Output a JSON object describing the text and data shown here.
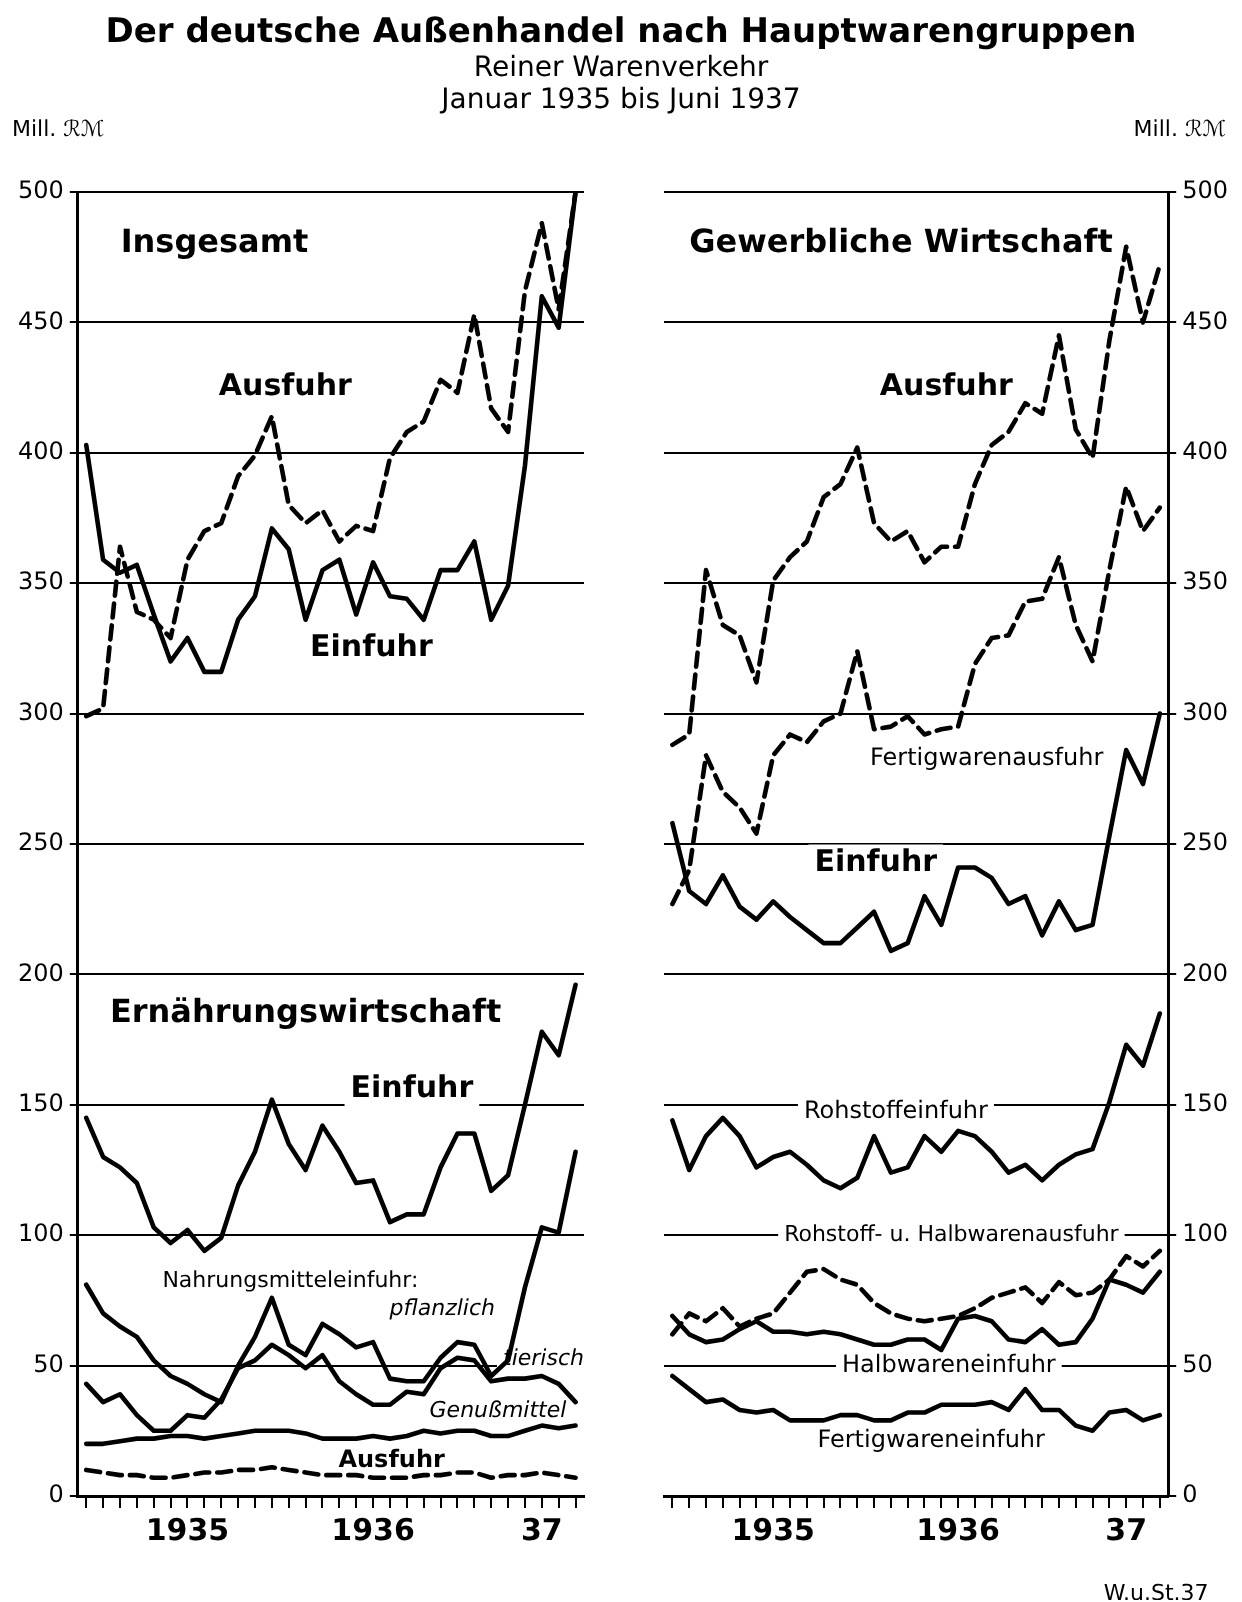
{
  "chart_data": [
    {
      "type": "line",
      "title": "Der deutsche Außenhandel nach Hauptwarengruppen",
      "subtitle": "Reiner Warenverkehr\nJanuar 1935 bis Juni 1937",
      "ylabel": "Mill. ℛℳ",
      "categories": [
        null,
        null,
        null,
        null,
        null,
        null,
        "1935",
        null,
        null,
        null,
        null,
        null,
        null,
        null,
        null,
        null,
        null,
        "1936",
        null,
        null,
        null,
        null,
        null,
        null,
        null,
        null,
        null,
        "37",
        null,
        null
      ],
      "ylim": [
        0,
        500
      ],
      "yticks": [
        0,
        50,
        100,
        150,
        200,
        250,
        300,
        350,
        400,
        450,
        500
      ],
      "grid": "y",
      "legend": false,
      "marker": "none",
      "annotations": [
        "Insgesamt",
        "Ernährungswirtschaft",
        "Nahrungsmitteleinfuhr:"
      ],
      "series": [
        {
          "name": "Ausfuhr",
          "color": "#000000",
          "line_style": "dashed",
          "values": [
            299,
            302,
            364,
            339,
            336,
            329,
            359,
            370,
            373,
            391,
            399,
            414,
            380,
            373,
            378,
            366,
            372,
            370,
            398,
            408,
            412,
            428,
            423,
            453,
            417,
            408,
            462,
            488,
            455,
            500
          ]
        },
        {
          "name": "Einfuhr",
          "color": "#000000",
          "line_style": "solid",
          "values": [
            403,
            359,
            354,
            357,
            338,
            320,
            329,
            316,
            316,
            336,
            345,
            371,
            363,
            336,
            355,
            359,
            338,
            358,
            345,
            344,
            336,
            355,
            355,
            366,
            336,
            349,
            395,
            460,
            448,
            500
          ]
        },
        {
          "name": "Einfuhr",
          "color": "#000000",
          "line_style": "solid",
          "values": [
            145,
            130,
            126,
            120,
            103,
            97,
            102,
            94,
            99,
            119,
            132,
            152,
            135,
            125,
            142,
            132,
            120,
            121,
            105,
            108,
            108,
            126,
            139,
            139,
            117,
            123,
            150,
            178,
            169,
            196
          ]
        },
        {
          "name": "pflanzlich",
          "color": "#000000",
          "line_style": "solid",
          "values": [
            81,
            70,
            65,
            61,
            52,
            46,
            43,
            39,
            36,
            50,
            61,
            76,
            58,
            54,
            66,
            62,
            57,
            59,
            45,
            44,
            44,
            53,
            59,
            58,
            46,
            52,
            80,
            103,
            101,
            132
          ]
        },
        {
          "name": "tierisch",
          "color": "#000000",
          "line_style": "solid",
          "values": [
            43,
            36,
            39,
            31,
            25,
            25,
            31,
            30,
            37,
            49,
            52,
            58,
            54,
            49,
            54,
            44,
            39,
            35,
            35,
            40,
            39,
            49,
            53,
            52,
            44,
            45,
            45,
            46,
            43,
            36
          ]
        },
        {
          "name": "Genußmittel",
          "color": "#000000",
          "line_style": "solid",
          "values": [
            20,
            20,
            21,
            22,
            22,
            23,
            23,
            22,
            23,
            24,
            25,
            25,
            25,
            24,
            22,
            22,
            22,
            23,
            22,
            23,
            25,
            24,
            25,
            25,
            23,
            23,
            25,
            27,
            26,
            27
          ]
        },
        {
          "name": "Ausfuhr",
          "color": "#000000",
          "line_style": "dashed",
          "values": [
            10,
            9,
            8,
            8,
            7,
            7,
            8,
            9,
            9,
            10,
            10,
            11,
            10,
            9,
            8,
            8,
            8,
            7,
            7,
            7,
            8,
            8,
            9,
            9,
            7,
            8,
            8,
            9,
            8,
            7
          ]
        }
      ]
    },
    {
      "type": "line",
      "ylabel": "Mill. ℛℳ",
      "categories": [
        null,
        null,
        null,
        null,
        null,
        null,
        "1935",
        null,
        null,
        null,
        null,
        null,
        null,
        null,
        null,
        null,
        null,
        "1936",
        null,
        null,
        null,
        null,
        null,
        null,
        null,
        null,
        null,
        "37",
        null,
        null
      ],
      "ylim": [
        0,
        500
      ],
      "yticks": [
        0,
        50,
        100,
        150,
        200,
        250,
        300,
        350,
        400,
        450,
        500
      ],
      "grid": "y",
      "legend": false,
      "marker": "none",
      "annotations": [
        "Gewerbliche Wirtschaft",
        "W.u.St.37"
      ],
      "series": [
        {
          "name": "Ausfuhr",
          "color": "#000000",
          "line_style": "dashed",
          "values": [
            288,
            292,
            355,
            334,
            330,
            312,
            351,
            360,
            366,
            383,
            388,
            402,
            373,
            366,
            370,
            358,
            364,
            364,
            388,
            403,
            408,
            419,
            415,
            445,
            409,
            398,
            443,
            479,
            450,
            472
          ]
        },
        {
          "name": "Fertigwarenausfuhr",
          "color": "#000000",
          "line_style": "dashed",
          "values": [
            227,
            240,
            284,
            270,
            264,
            254,
            284,
            292,
            289,
            297,
            300,
            324,
            294,
            295,
            299,
            292,
            294,
            295,
            319,
            329,
            330,
            343,
            344,
            360,
            334,
            320,
            355,
            387,
            370,
            379
          ]
        },
        {
          "name": "Einfuhr",
          "color": "#000000",
          "line_style": "solid",
          "values": [
            258,
            232,
            227,
            238,
            226,
            221,
            228,
            222,
            217,
            212,
            212,
            218,
            224,
            209,
            212,
            230,
            219,
            241,
            241,
            237,
            227,
            230,
            215,
            228,
            217,
            219,
            253,
            286,
            273,
            300
          ]
        },
        {
          "name": "Rohstoffeinfuhr",
          "color": "#000000",
          "line_style": "solid",
          "values": [
            144,
            125,
            138,
            145,
            138,
            126,
            130,
            132,
            127,
            121,
            118,
            122,
            138,
            124,
            126,
            138,
            132,
            140,
            138,
            132,
            124,
            127,
            121,
            127,
            131,
            133,
            151,
            173,
            165,
            185
          ]
        },
        {
          "name": "Rohstoff- u. Halbwarenausfuhr",
          "color": "#000000",
          "line_style": "dashed",
          "values": [
            62,
            70,
            67,
            72,
            65,
            68,
            70,
            78,
            86,
            87,
            83,
            81,
            74,
            70,
            68,
            67,
            68,
            69,
            72,
            76,
            78,
            80,
            74,
            82,
            77,
            78,
            83,
            92,
            88,
            94
          ]
        },
        {
          "name": "Halbwareneinfuhr",
          "color": "#000000",
          "line_style": "solid",
          "values": [
            69,
            62,
            59,
            60,
            64,
            67,
            63,
            63,
            62,
            63,
            62,
            60,
            58,
            58,
            60,
            60,
            56,
            68,
            69,
            67,
            60,
            59,
            64,
            58,
            59,
            68,
            83,
            81,
            78,
            86
          ]
        },
        {
          "name": "Fertigwareneinfuhr",
          "color": "#000000",
          "line_style": "solid",
          "values": [
            46,
            41,
            36,
            37,
            33,
            32,
            33,
            29,
            29,
            29,
            31,
            31,
            29,
            29,
            32,
            32,
            35,
            35,
            35,
            36,
            33,
            41,
            33,
            33,
            27,
            25,
            32,
            33,
            29,
            31
          ]
        }
      ]
    }
  ]
}
